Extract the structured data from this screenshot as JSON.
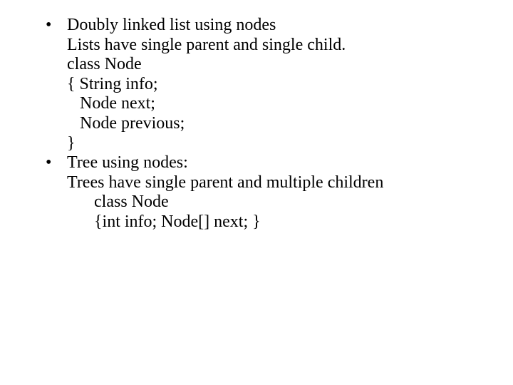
{
  "bullets": [
    {
      "title": "Doubly linked list using nodes",
      "lines": [
        {
          "text": "Lists have single parent and single child.",
          "indent": "indent1"
        },
        {
          "text": "class Node",
          "indent": "indent1"
        },
        {
          "text": "{ String info;",
          "indent": "indent1"
        },
        {
          "text": "Node next;",
          "indent": "indent2"
        },
        {
          "text": "Node previous;",
          "indent": "indent2"
        },
        {
          "text": "}",
          "indent": "indent1"
        }
      ]
    },
    {
      "title": "Tree using nodes:",
      "lines": [
        {
          "text": "Trees have single parent and multiple children",
          "indent": "indent1"
        },
        {
          "text": "class Node",
          "indent": "indent3"
        },
        {
          "text": "{int info; Node[] next; }",
          "indent": "indent3"
        }
      ]
    }
  ],
  "text_color": "#000000",
  "background_color": "#ffffff",
  "font_family": "Times New Roman",
  "font_size_pt": 18,
  "bullet_char": "•"
}
